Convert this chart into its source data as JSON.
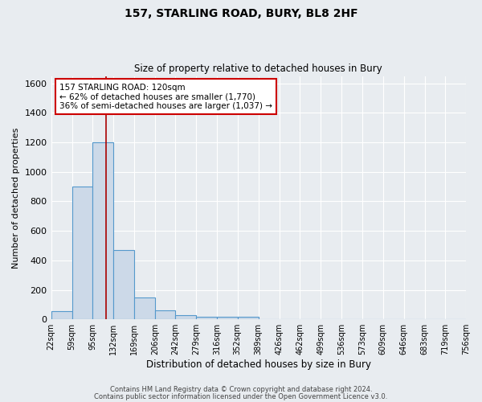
{
  "title": "157, STARLING ROAD, BURY, BL8 2HF",
  "subtitle": "Size of property relative to detached houses in Bury",
  "xlabel": "Distribution of detached houses by size in Bury",
  "ylabel": "Number of detached properties",
  "bin_edges": [
    22,
    59,
    95,
    132,
    169,
    206,
    242,
    279,
    316,
    352,
    389,
    426,
    462,
    499,
    536,
    573,
    609,
    646,
    683,
    719,
    756
  ],
  "bin_counts": [
    55,
    900,
    1200,
    470,
    150,
    60,
    30,
    20,
    20,
    20,
    0,
    0,
    0,
    0,
    0,
    0,
    0,
    0,
    0,
    0
  ],
  "bar_color": "#ccd9e8",
  "bar_edge_color": "#5599cc",
  "bar_linewidth": 0.8,
  "vline_x": 120,
  "vline_color": "#aa0000",
  "vline_linewidth": 1.2,
  "annotation_line1": "157 STARLING ROAD: 120sqm",
  "annotation_line2": "← 62% of detached houses are smaller (1,770)",
  "annotation_line3": "36% of semi-detached houses are larger (1,037) →",
  "annotation_box_color": "#ffffff",
  "annotation_box_edge_color": "#cc0000",
  "ylim": [
    0,
    1650
  ],
  "yticks": [
    0,
    200,
    400,
    600,
    800,
    1000,
    1200,
    1400,
    1600
  ],
  "tick_labels": [
    "22sqm",
    "59sqm",
    "95sqm",
    "132sqm",
    "169sqm",
    "206sqm",
    "242sqm",
    "279sqm",
    "316sqm",
    "352sqm",
    "389sqm",
    "426sqm",
    "462sqm",
    "499sqm",
    "536sqm",
    "573sqm",
    "609sqm",
    "646sqm",
    "683sqm",
    "719sqm",
    "756sqm"
  ],
  "bg_color": "#e8ecf0",
  "grid_color": "#ffffff",
  "footer1": "Contains HM Land Registry data © Crown copyright and database right 2024.",
  "footer2": "Contains public sector information licensed under the Open Government Licence v3.0."
}
